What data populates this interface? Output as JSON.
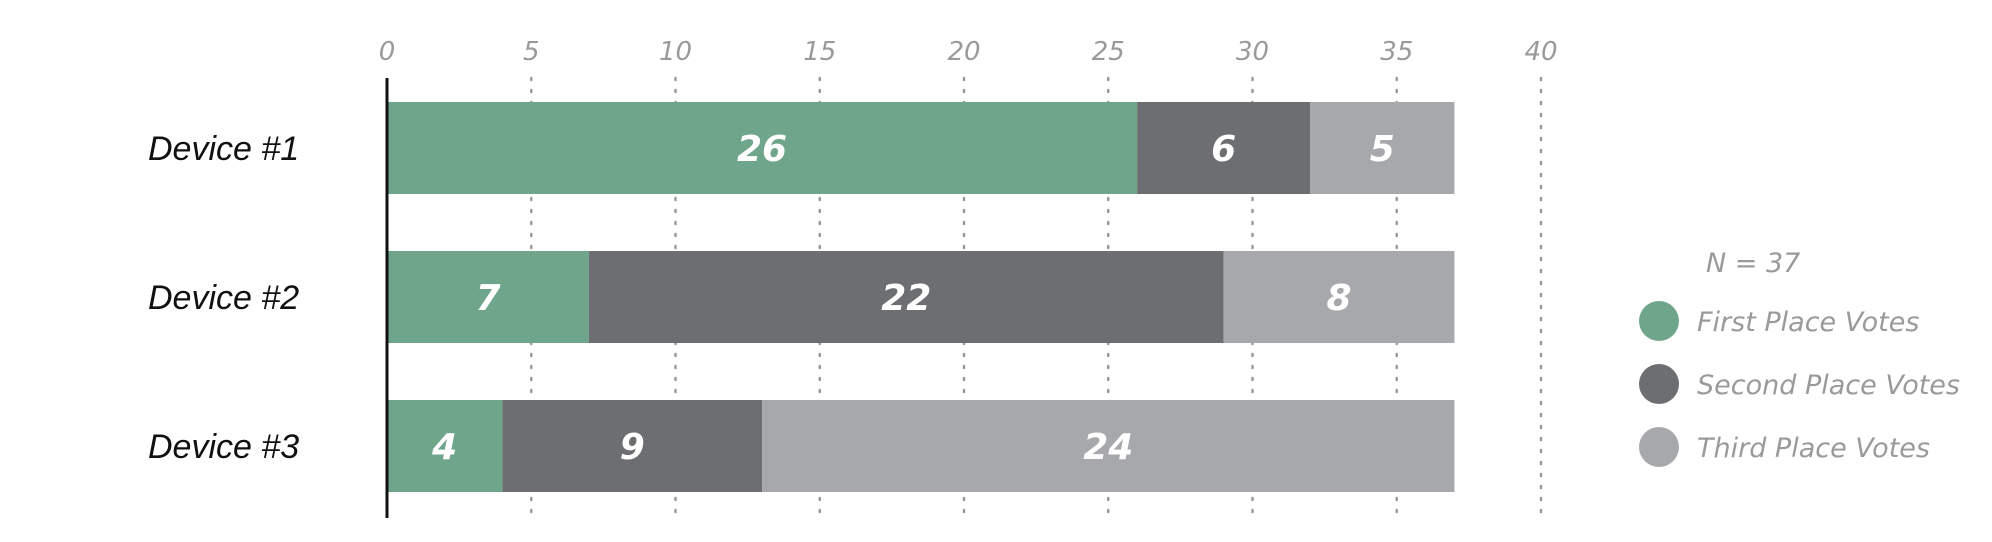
{
  "chart_data": {
    "type": "bar",
    "orientation": "horizontal",
    "stacked": true,
    "categories": [
      "Device #1",
      "Device #2",
      "Device #3"
    ],
    "series": [
      {
        "name": "First Place Votes",
        "values": [
          26,
          7,
          4
        ],
        "color": "#6fa58b"
      },
      {
        "name": "Second Place Votes",
        "values": [
          6,
          22,
          9
        ],
        "color": "#6d6e71"
      },
      {
        "name": "Third Place Votes",
        "values": [
          5,
          8,
          24
        ],
        "color": "#a7a8ab"
      }
    ],
    "xlim": [
      0,
      40
    ],
    "xticks": [
      "0",
      "5",
      "10",
      "15",
      "20",
      "25",
      "30",
      "35",
      "40"
    ],
    "grid": "vertical-dotted",
    "legend_position": "right",
    "note": "N = 37",
    "data_label_color": "#ffffff",
    "axis_color": "#111111",
    "grid_color": "#9a9a9a"
  }
}
